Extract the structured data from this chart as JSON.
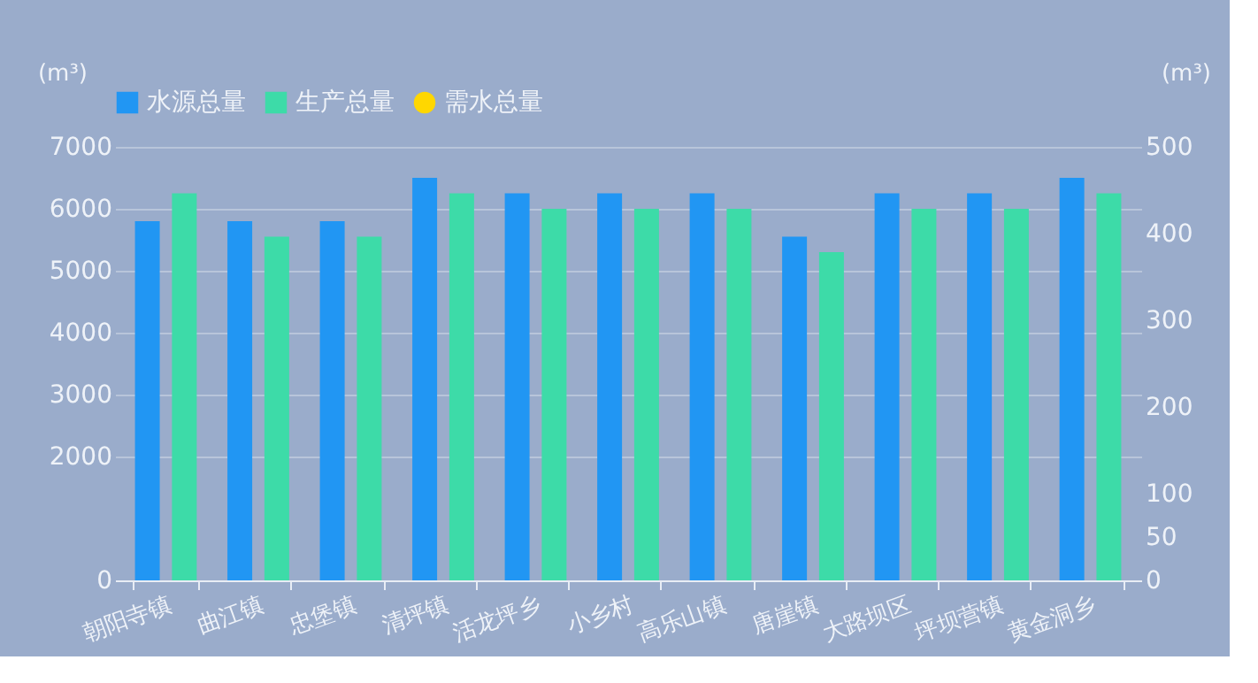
{
  "chart_data": {
    "type": "bar",
    "categories": [
      "朝阳寺镇",
      "曲江镇",
      "忠堡镇",
      "清坪镇",
      "活龙坪乡",
      "小乡村",
      "高乐山镇",
      "唐崖镇",
      "大路坝区",
      "坪坝营镇",
      "黄金洞乡"
    ],
    "series": [
      {
        "name": "水源总量",
        "color": "#2196f3",
        "values": [
          5800,
          5800,
          5800,
          6500,
          6250,
          6250,
          6250,
          5550,
          6250,
          6250,
          6500
        ]
      },
      {
        "name": "生产总量",
        "color": "#3ddba8",
        "values": [
          6250,
          5550,
          5550,
          6250,
          6000,
          6000,
          6000,
          5300,
          6000,
          6000,
          6250
        ]
      },
      {
        "name": "需水总量",
        "color": "#ffd700",
        "type": "line",
        "axis": "y2",
        "marker": "circle",
        "values": [
          null,
          null,
          null,
          null,
          null,
          null,
          null,
          null,
          null,
          null,
          null
        ]
      }
    ],
    "ylabel": "(m³)",
    "y2label": "(m³)",
    "ylim": [
      0,
      7000
    ],
    "yticks": [
      0,
      2000,
      3000,
      4000,
      5000,
      6000,
      7000
    ],
    "y2lim": [
      0,
      500
    ],
    "y2ticks": [
      0,
      50,
      100,
      200,
      300,
      400,
      500
    ],
    "grid": "y",
    "legend": "top"
  }
}
